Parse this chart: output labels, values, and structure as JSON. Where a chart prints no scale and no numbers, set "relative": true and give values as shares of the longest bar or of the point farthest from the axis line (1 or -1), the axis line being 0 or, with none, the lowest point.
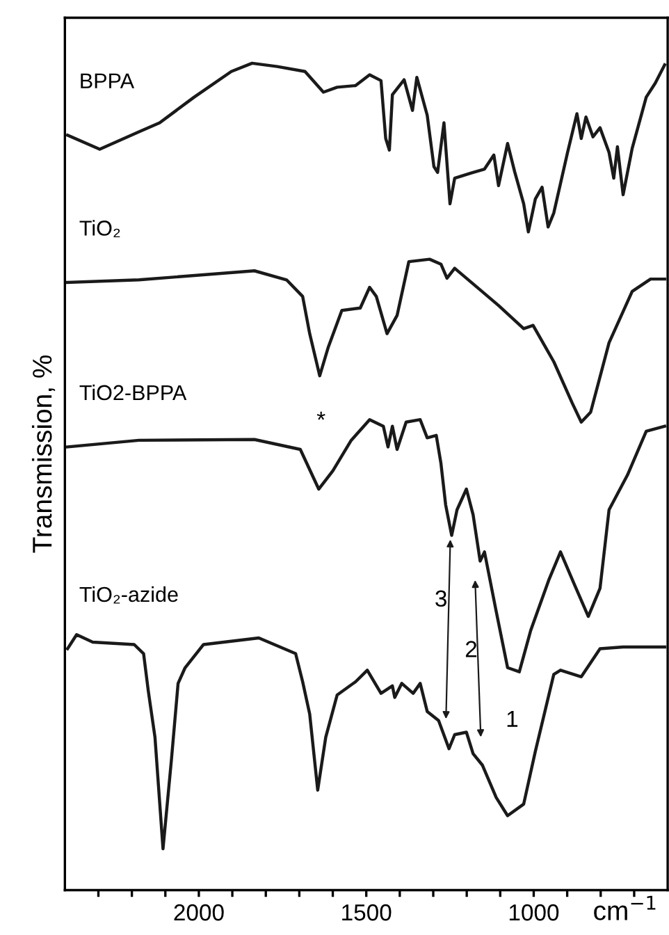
{
  "chart_data": {
    "type": "line",
    "relative": true,
    "xlabel": "cm$^{−1}$",
    "ylabel": "Transmission, %",
    "xlim": [
      2400,
      600
    ],
    "xticks": [
      {
        "value": 2300,
        "label": null
      },
      {
        "value": 2200,
        "label": null
      },
      {
        "value": 2100,
        "label": null
      },
      2000,
      {
        "value": 1900,
        "label": null
      },
      {
        "value": 1800,
        "label": null
      },
      {
        "value": 1700,
        "label": null
      },
      {
        "value": 1600,
        "label": null
      },
      1500,
      {
        "value": 1400,
        "label": null
      },
      {
        "value": 1300,
        "label": null
      },
      {
        "value": 1200,
        "label": null
      },
      {
        "value": 1100,
        "label": null
      },
      1000,
      {
        "value": 900,
        "label": null
      },
      {
        "value": 800,
        "label": null
      },
      {
        "value": 700,
        "label": null
      }
    ],
    "tick_labels": "x",
    "grid": false,
    "legend": false,
    "marker": "none",
    "line_style": "solid",
    "annotations": [
      "*",
      "3",
      "2",
      "1"
    ],
    "series": [
      {
        "name": "BPPA",
        "color": "#1a1a1a",
        "x": [
          2392,
          2296,
          2179,
          2117,
          2014,
          1903,
          1841,
          1766,
          1683,
          1628,
          1587,
          1532,
          1490,
          1456,
          1442,
          1431,
          1422,
          1387,
          1362,
          1349,
          1318,
          1298,
          1287,
          1268,
          1250,
          1236,
          1188,
          1147,
          1119,
          1105,
          1078,
          1057,
          1030,
          1016,
          995,
          975,
          957,
          940,
          899,
          871,
          858,
          844,
          823,
          802,
          775,
          761,
          750,
          733,
          706,
          664,
          637,
          609
        ],
        "values": [
          0.913,
          0.896,
          0.917,
          0.928,
          0.959,
          0.99,
          1.0,
          0.996,
          0.99,
          0.965,
          0.971,
          0.973,
          0.986,
          0.979,
          0.909,
          0.895,
          0.962,
          0.98,
          0.943,
          0.983,
          0.937,
          0.875,
          0.868,
          0.928,
          0.83,
          0.861,
          0.867,
          0.872,
          0.889,
          0.852,
          0.903,
          0.869,
          0.83,
          0.796,
          0.836,
          0.85,
          0.802,
          0.819,
          0.892,
          0.939,
          0.909,
          0.935,
          0.911,
          0.922,
          0.892,
          0.861,
          0.899,
          0.841,
          0.897,
          0.959,
          0.976,
          0.998
        ]
      },
      {
        "name": "TiO₂",
        "color": "#1a1a1a",
        "x": [
          2392,
          2179,
          1834,
          1738,
          1690,
          1669,
          1639,
          1614,
          1573,
          1518,
          1490,
          1470,
          1438,
          1408,
          1373,
          1311,
          1277,
          1259,
          1236,
          1160,
          1105,
          1030,
          1002,
          940,
          885,
          858,
          830,
          775,
          706,
          651,
          609
        ],
        "values": [
          0.735,
          0.738,
          0.749,
          0.738,
          0.718,
          0.673,
          0.622,
          0.656,
          0.701,
          0.704,
          0.729,
          0.718,
          0.673,
          0.695,
          0.76,
          0.763,
          0.757,
          0.74,
          0.752,
          0.726,
          0.707,
          0.679,
          0.683,
          0.639,
          0.589,
          0.566,
          0.578,
          0.662,
          0.724,
          0.739,
          0.739
        ]
      },
      {
        "name": "TiO2-BPPA",
        "color": "#1a1a1a",
        "x": [
          2392,
          2179,
          1834,
          1697,
          1642,
          1600,
          1545,
          1490,
          1449,
          1435,
          1422,
          1408,
          1381,
          1339,
          1318,
          1291,
          1277,
          1263,
          1245,
          1229,
          1201,
          1181,
          1160,
          1147,
          1112,
          1078,
          1043,
          1009,
          954,
          920,
          879,
          837,
          802,
          775,
          720,
          664,
          609
        ],
        "values": [
          0.536,
          0.544,
          0.545,
          0.533,
          0.485,
          0.507,
          0.544,
          0.569,
          0.561,
          0.536,
          0.561,
          0.533,
          0.566,
          0.569,
          0.547,
          0.55,
          0.516,
          0.466,
          0.429,
          0.46,
          0.485,
          0.454,
          0.398,
          0.409,
          0.337,
          0.269,
          0.264,
          0.314,
          0.376,
          0.409,
          0.37,
          0.331,
          0.365,
          0.46,
          0.502,
          0.555,
          0.561
        ]
      },
      {
        "name": "TiO₂-azide",
        "color": "#1a1a1a",
        "x": [
          2392,
          2365,
          2317,
          2193,
          2165,
          2151,
          2131,
          2107,
          2082,
          2062,
          2041,
          1986,
          1821,
          1711,
          1690,
          1669,
          1645,
          1621,
          1587,
          1532,
          1497,
          1456,
          1422,
          1415,
          1394,
          1360,
          1339,
          1318,
          1284,
          1253,
          1236,
          1201,
          1181,
          1153,
          1112,
          1078,
          1030,
          995,
          940,
          920,
          858,
          802,
          733,
          609
        ],
        "values": [
          0.292,
          0.309,
          0.3,
          0.297,
          0.286,
          0.241,
          0.185,
          0.05,
          0.157,
          0.25,
          0.269,
          0.297,
          0.305,
          0.286,
          0.252,
          0.213,
          0.121,
          0.185,
          0.236,
          0.252,
          0.266,
          0.238,
          0.247,
          0.233,
          0.25,
          0.238,
          0.25,
          0.216,
          0.205,
          0.171,
          0.188,
          0.191,
          0.165,
          0.151,
          0.112,
          0.09,
          0.104,
          0.168,
          0.261,
          0.266,
          0.258,
          0.292,
          0.294,
          0.294
        ]
      }
    ]
  }
}
